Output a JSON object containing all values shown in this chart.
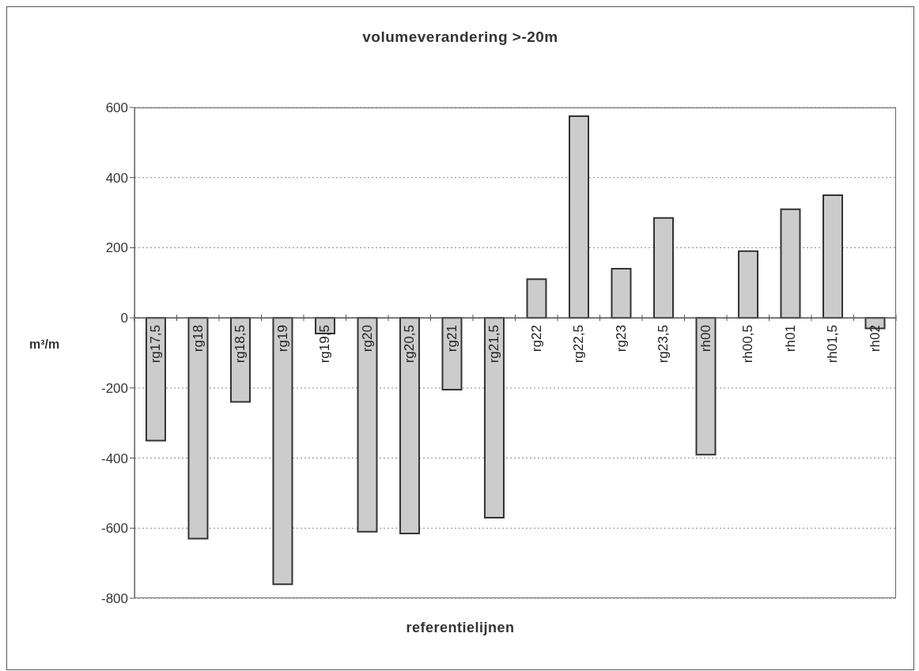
{
  "chart_data": {
    "type": "bar",
    "title": "volumeverandering >-20m",
    "xlabel": "referentielijnen",
    "ylabel": "m³/m",
    "categories": [
      "rg17,5",
      "rg18",
      "rg18,5",
      "rg19",
      "rg19,5",
      "rg20",
      "rg20,5",
      "rg21",
      "rg21,5",
      "rg22",
      "rg22,5",
      "rg23",
      "rg23,5",
      "rh00",
      "rh00,5",
      "rh01",
      "rh01,5",
      "rh02"
    ],
    "values": [
      -350,
      -630,
      -240,
      -760,
      -45,
      -610,
      -615,
      -205,
      -570,
      110,
      575,
      140,
      285,
      -390,
      190,
      310,
      350,
      -30
    ],
    "color": "#cccccc",
    "ylim": [
      -800,
      600
    ],
    "yticks": [
      -800,
      -600,
      -400,
      -200,
      0,
      200,
      400,
      600
    ],
    "grid": "y"
  }
}
